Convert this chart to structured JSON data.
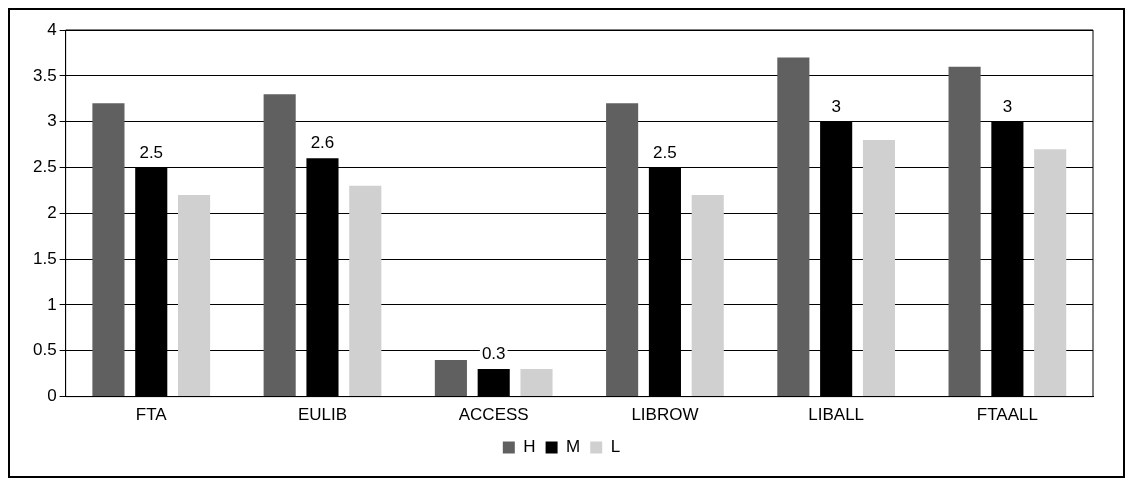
{
  "chart_data": {
    "type": "bar",
    "categories": [
      "FTA",
      "EULIB",
      "ACCESS",
      "LIBROW",
      "LIBALL",
      "FTAALL"
    ],
    "series": [
      {
        "name": "H",
        "color": "#606060",
        "values": [
          3.2,
          3.3,
          0.4,
          3.2,
          3.7,
          3.6
        ]
      },
      {
        "name": "M",
        "color": "#000000",
        "values": [
          2.5,
          2.6,
          0.3,
          2.5,
          3,
          3
        ],
        "value_labels": [
          "2.5",
          "2.6",
          "0.3",
          "2.5",
          "3",
          "3"
        ]
      },
      {
        "name": "L",
        "color": "#d0d0d0",
        "values": [
          2.2,
          2.3,
          0.3,
          2.2,
          2.8,
          2.7
        ]
      }
    ],
    "ylim": [
      0,
      4
    ],
    "yticks": [
      0,
      0.5,
      1,
      1.5,
      2,
      2.5,
      3,
      3.5,
      4
    ],
    "grid": "y",
    "legend": "bottom"
  }
}
